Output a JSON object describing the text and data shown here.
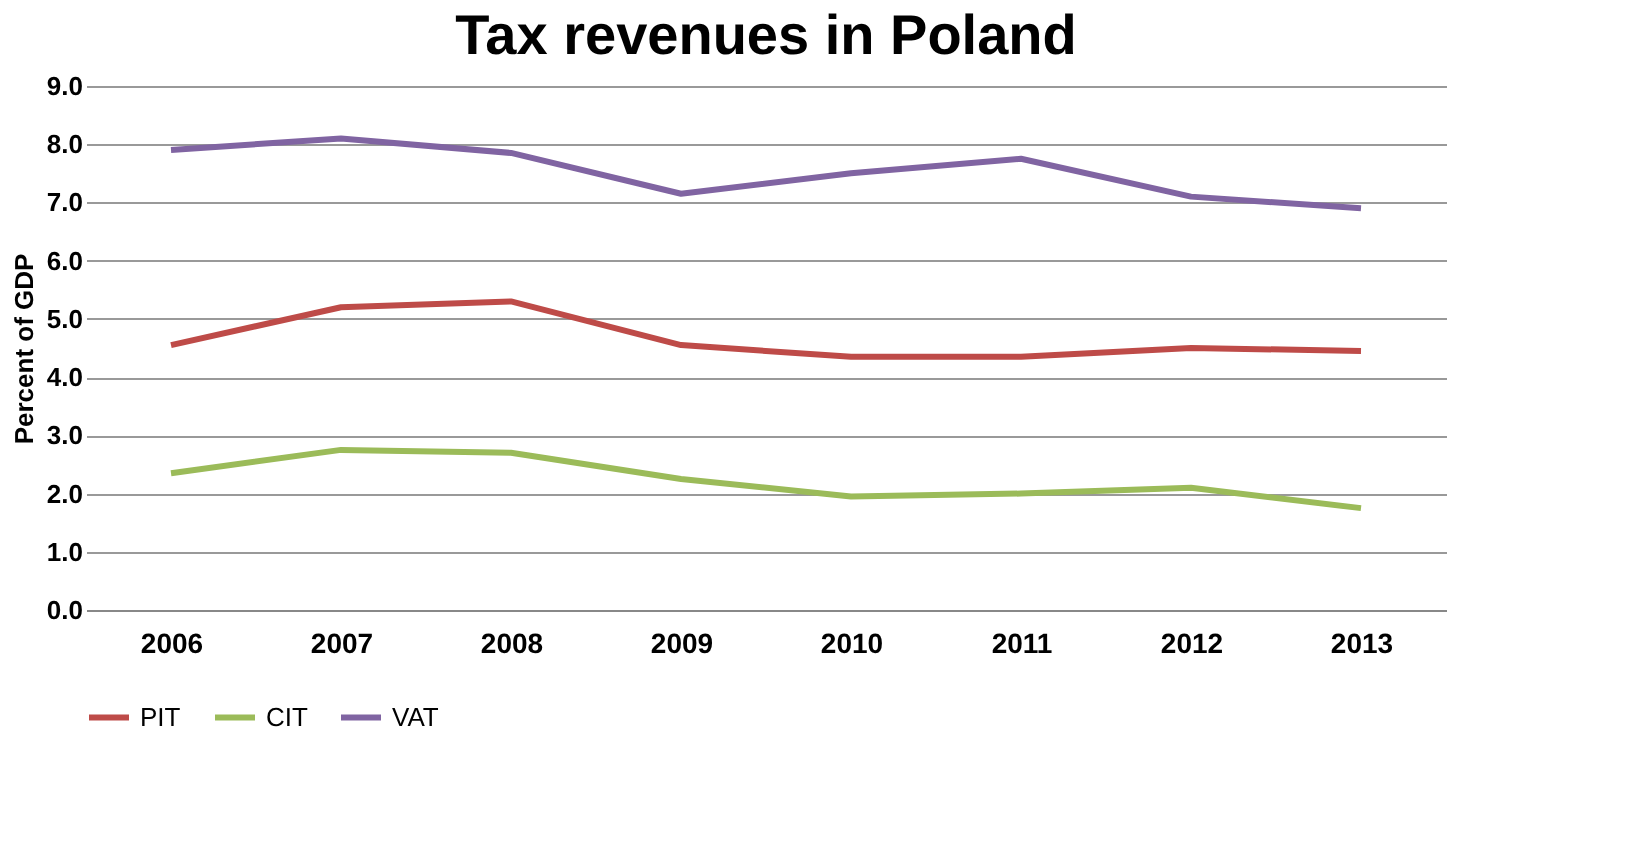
{
  "chart_data": {
    "type": "line",
    "title": "Tax revenues in Poland",
    "ylabel": "Percent of GDP",
    "categories": [
      "2006",
      "2007",
      "2008",
      "2009",
      "2010",
      "2011",
      "2012",
      "2013"
    ],
    "series": [
      {
        "name": "PIT",
        "color": "#be4b48",
        "values": [
          4.55,
          5.2,
          5.3,
          4.55,
          4.35,
          4.35,
          4.5,
          4.45
        ]
      },
      {
        "name": "CIT",
        "color": "#9bbb59",
        "values": [
          2.35,
          2.75,
          2.7,
          2.25,
          1.95,
          2.0,
          2.1,
          1.75
        ]
      },
      {
        "name": "VAT",
        "color": "#8064a2",
        "values": [
          7.9,
          8.1,
          7.85,
          7.15,
          7.5,
          7.75,
          7.1,
          6.9
        ]
      }
    ],
    "ylim": [
      0,
      9
    ],
    "yticks": [
      {
        "value": 0,
        "label": "0.0"
      },
      {
        "value": 1,
        "label": "1.0"
      },
      {
        "value": 2,
        "label": "2.0"
      },
      {
        "value": 3,
        "label": "3.0"
      },
      {
        "value": 4,
        "label": "4.0"
      },
      {
        "value": 5,
        "label": "5.0"
      },
      {
        "value": 6,
        "label": "6.0"
      },
      {
        "value": 7,
        "label": "7.0"
      },
      {
        "value": 8,
        "label": "8.0"
      },
      {
        "value": 9,
        "label": "9.0"
      }
    ],
    "grid": "y",
    "legend": "bottom",
    "marker": "none",
    "line_style": "solid"
  }
}
